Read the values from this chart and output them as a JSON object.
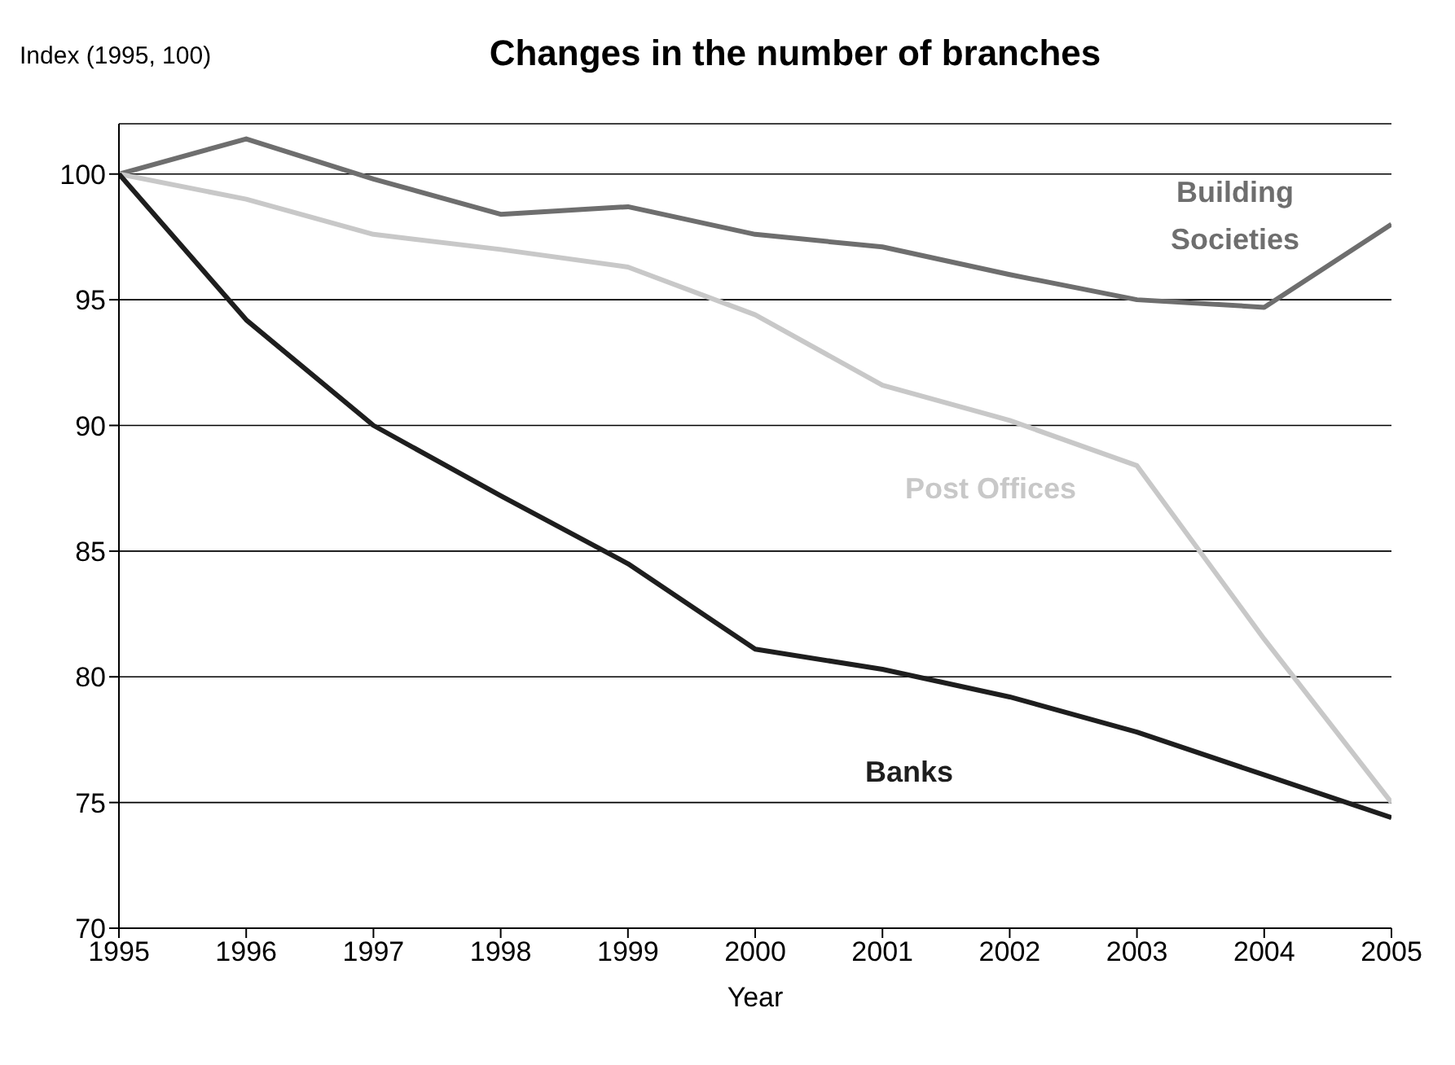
{
  "chart_data": {
    "type": "line",
    "title": "Changes in the number of branches",
    "ylabel": "Index (1995, 100)",
    "xlabel": "Year",
    "x": [
      1995,
      1996,
      1997,
      1998,
      1999,
      2000,
      2001,
      2002,
      2003,
      2004,
      2005
    ],
    "series": [
      {
        "name": "Building Societies",
        "color": "#6e6e6e",
        "values": [
          100,
          101.4,
          99.8,
          98.4,
          98.7,
          97.6,
          97.1,
          96.0,
          95.0,
          94.7,
          98.0
        ]
      },
      {
        "name": "Post Offices",
        "color": "#c8c8c8",
        "values": [
          100,
          99.0,
          97.6,
          97.0,
          96.3,
          94.4,
          91.6,
          90.2,
          88.4,
          81.5,
          75.0
        ]
      },
      {
        "name": "Banks",
        "color": "#1e1e1e",
        "values": [
          100,
          94.2,
          90.0,
          87.2,
          84.5,
          81.1,
          80.3,
          79.2,
          77.8,
          76.1,
          74.4
        ]
      }
    ],
    "xlim": [
      1995,
      2005
    ],
    "xticks": [
      1995,
      1996,
      1997,
      1998,
      1999,
      2000,
      2001,
      2002,
      2003,
      2004,
      2005
    ],
    "ylim": [
      70,
      102
    ],
    "yticks": [
      70,
      75,
      80,
      85,
      90,
      95,
      100
    ],
    "grid": "y",
    "marker": "none",
    "line_style": "solid"
  }
}
